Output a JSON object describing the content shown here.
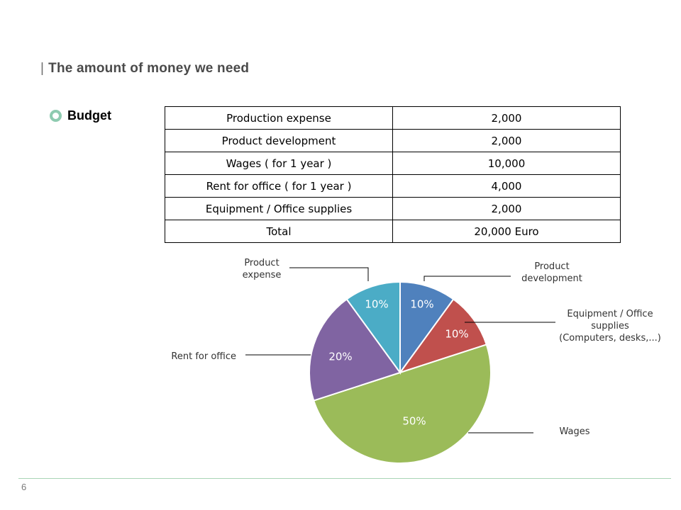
{
  "slide": {
    "title": "The amount of money we need",
    "section_label": "Budget",
    "page_number": "6"
  },
  "table": {
    "rows": [
      {
        "item": "Production expense",
        "amount": "2,000"
      },
      {
        "item": "Product development",
        "amount": "2,000"
      },
      {
        "item": "Wages ( for 1 year )",
        "amount": "10,000"
      },
      {
        "item": "Rent for office ( for 1 year )",
        "amount": "4,000"
      },
      {
        "item": "Equipment / Office supplies",
        "amount": "2,000"
      },
      {
        "item": "Total",
        "amount": "20,000 Euro"
      }
    ]
  },
  "colors": {
    "title": "#4a4a4a",
    "ring_icon": "#8ecbb0",
    "footer_line": "#a9d4b6"
  },
  "chart_data": {
    "type": "pie",
    "title": "",
    "slices": [
      {
        "label": [
          "Product",
          "development"
        ],
        "value": 10,
        "display": "10%",
        "color": "#4f81bd"
      },
      {
        "label": [
          "Equipment / Office",
          "supplies",
          "(Computers, desks,...)"
        ],
        "value": 10,
        "display": "10%",
        "color": "#c0504d"
      },
      {
        "label": [
          "Wages"
        ],
        "value": 50,
        "display": "50%",
        "color": "#9bbb59"
      },
      {
        "label": [
          "Rent for office"
        ],
        "value": 20,
        "display": "20%",
        "color": "#8064a2"
      },
      {
        "label": [
          "Product",
          "expense"
        ],
        "value": 10,
        "display": "10%",
        "color": "#4bacc6"
      }
    ],
    "start_angle": "12 o'clock",
    "direction": "clockwise",
    "legend": "none (callout labels)"
  }
}
